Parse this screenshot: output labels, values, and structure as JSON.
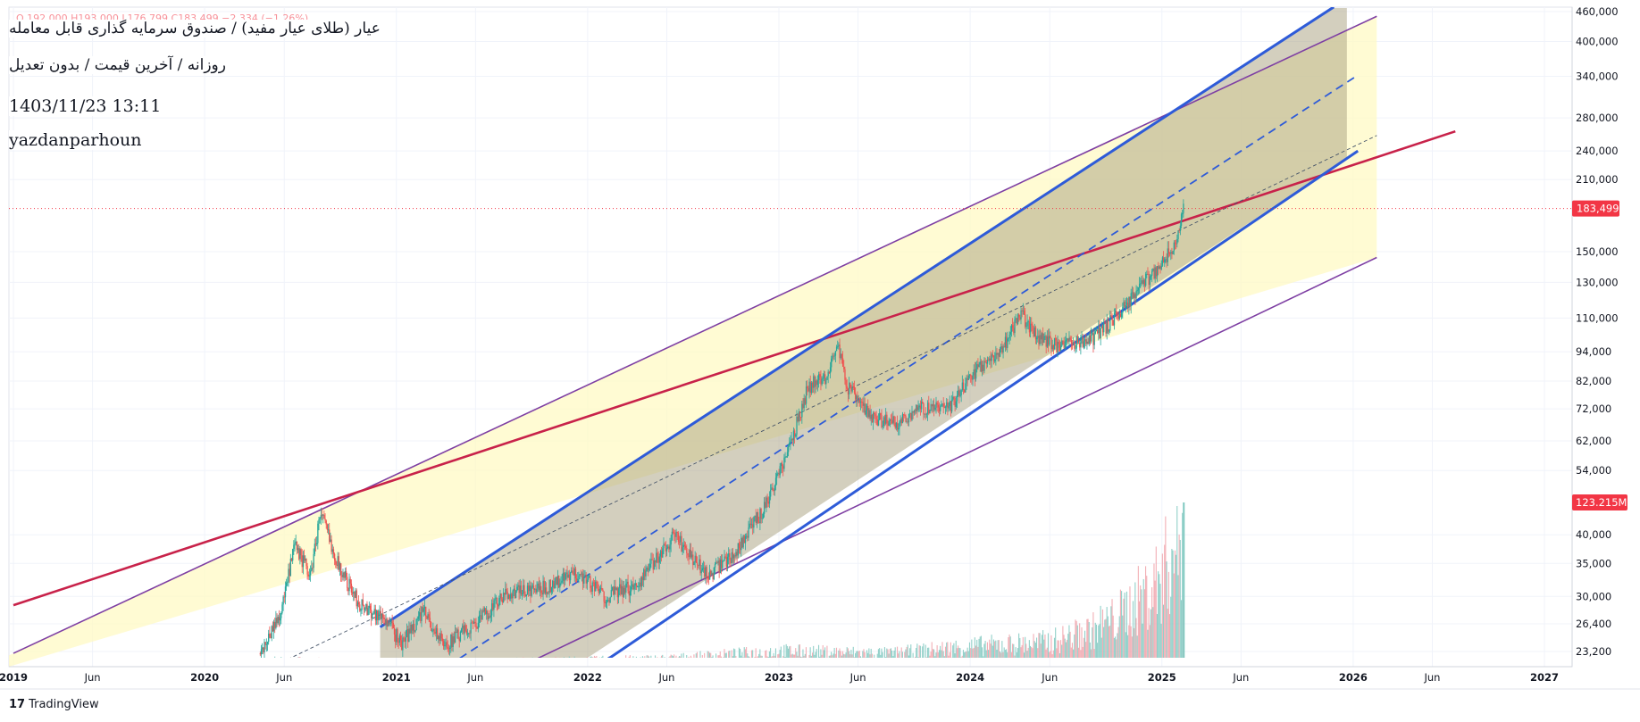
{
  "header": {
    "title": "عیار (طلای عیار مفید) / صندوق سرمایه گذاری قابل معامله",
    "subtitle": "روزانه / آخرین قیمت / بدون تعدیل",
    "datetime": "1403/11/23 13:11",
    "author": "yazdanparhoun",
    "ohlc_text": "O 192,000 H193,000 L176,799 C183,499 −2,334 (−1.26%)"
  },
  "brand": {
    "name": "TradingView"
  },
  "chart_data": {
    "type": "candlestick",
    "yscale": "log",
    "ylim": [
      21000,
      470000
    ],
    "y_ticks": [
      "460,000",
      "400,000",
      "340,000",
      "280,000",
      "240,000",
      "210,000",
      "150,000",
      "130,000",
      "110,000",
      "94,000",
      "82,000",
      "72,000",
      "62,000",
      "54,000",
      "40,000",
      "35,000",
      "30,000",
      "26,400",
      "23,200"
    ],
    "x_ticks": [
      "2019",
      "Jun",
      "2020",
      "Jun",
      "2021",
      "Jun",
      "2022",
      "Jun",
      "2023",
      "Jun",
      "2024",
      "Jun",
      "2025",
      "Jun",
      "2026",
      "Jun",
      "2027"
    ],
    "last_price_label": "183,499",
    "volume_label": "123.215M",
    "price_anchors": [
      [
        "2020-04-15",
        23000
      ],
      [
        "2020-05-25",
        28000
      ],
      [
        "2020-06-20",
        38000
      ],
      [
        "2020-07-20",
        33000
      ],
      [
        "2020-08-08",
        44500
      ],
      [
        "2020-09-10",
        35000
      ],
      [
        "2020-10-20",
        29000
      ],
      [
        "2020-12-10",
        27000
      ],
      [
        "2021-01-10",
        24000
      ],
      [
        "2021-02-20",
        28000
      ],
      [
        "2021-04-01",
        23800
      ],
      [
        "2021-06-01",
        26500
      ],
      [
        "2021-08-01",
        30500
      ],
      [
        "2021-10-01",
        31000
      ],
      [
        "2021-12-15",
        33500
      ],
      [
        "2022-02-01",
        30000
      ],
      [
        "2022-04-01",
        31500
      ],
      [
        "2022-06-15",
        40000
      ],
      [
        "2022-07-20",
        35500
      ],
      [
        "2022-08-20",
        33000
      ],
      [
        "2022-10-10",
        37000
      ],
      [
        "2022-12-01",
        45000
      ],
      [
        "2023-01-20",
        60000
      ],
      [
        "2023-02-25",
        80000
      ],
      [
        "2023-04-01",
        84000
      ],
      [
        "2023-04-20",
        98000
      ],
      [
        "2023-05-10",
        80000
      ],
      [
        "2023-06-20",
        70000
      ],
      [
        "2023-08-10",
        67000
      ],
      [
        "2023-09-20",
        72000
      ],
      [
        "2023-11-20",
        72000
      ],
      [
        "2024-01-10",
        86000
      ],
      [
        "2024-03-01",
        95000
      ],
      [
        "2024-04-05",
        113000
      ],
      [
        "2024-05-01",
        102000
      ],
      [
        "2024-06-20",
        96000
      ],
      [
        "2024-08-20",
        100000
      ],
      [
        "2024-10-10",
        112000
      ],
      [
        "2024-11-20",
        128000
      ],
      [
        "2025-01-01",
        142000
      ],
      [
        "2025-01-30",
        160000
      ],
      [
        "2025-02-10",
        183499
      ]
    ],
    "volume_anchors": [
      [
        "2019-01-01",
        0.005
      ],
      [
        "2020-03-01",
        0.01
      ],
      [
        "2020-05-15",
        0.05
      ],
      [
        "2020-12-01",
        0.03
      ],
      [
        "2021-06-01",
        0.04
      ],
      [
        "2022-01-01",
        0.05
      ],
      [
        "2022-06-01",
        0.06
      ],
      [
        "2023-01-01",
        0.12
      ],
      [
        "2023-08-01",
        0.1
      ],
      [
        "2024-01-01",
        0.16
      ],
      [
        "2024-06-01",
        0.2
      ],
      [
        "2024-10-01",
        0.35
      ],
      [
        "2024-12-15",
        0.6
      ],
      [
        "2025-02-10",
        1.0
      ]
    ],
    "drawings": [
      {
        "name": "upper-envelope-purple",
        "color": "#7e3fa3",
        "from": [
          "2019-01-01",
          23000
        ],
        "to": [
          "2026-02-15",
          450000
        ]
      },
      {
        "name": "lower-envelope-purple",
        "color": "#7e3fa3",
        "from": [
          "2021-08-01",
          21000
        ],
        "to": [
          "2026-02-15",
          146000
        ]
      },
      {
        "name": "red-trendline",
        "color": "#c8224a",
        "from": [
          "2019-01-01",
          28800
        ],
        "to": [
          "2026-07-15",
          263000
        ]
      },
      {
        "name": "channel-upper-blue",
        "color": "#2e5bd8",
        "from": [
          "2020-12-01",
          26000
        ],
        "to": [
          "2025-11-25",
          470000
        ]
      },
      {
        "name": "channel-lower-blue",
        "color": "#2e5bd8",
        "from": [
          "2022-01-01",
          21000
        ],
        "to": [
          "2026-01-10",
          240000
        ]
      },
      {
        "name": "channel-mid-blue-dashed",
        "color": "#2e5bd8",
        "from": [
          "2021-03-20",
          21000
        ],
        "to": [
          "2026-01-10",
          342000
        ]
      },
      {
        "name": "thin-mid-dashed",
        "color": "#475569",
        "from": [
          "2020-04-15",
          21000
        ],
        "to": [
          "2026-02-15",
          258000
        ]
      }
    ]
  }
}
